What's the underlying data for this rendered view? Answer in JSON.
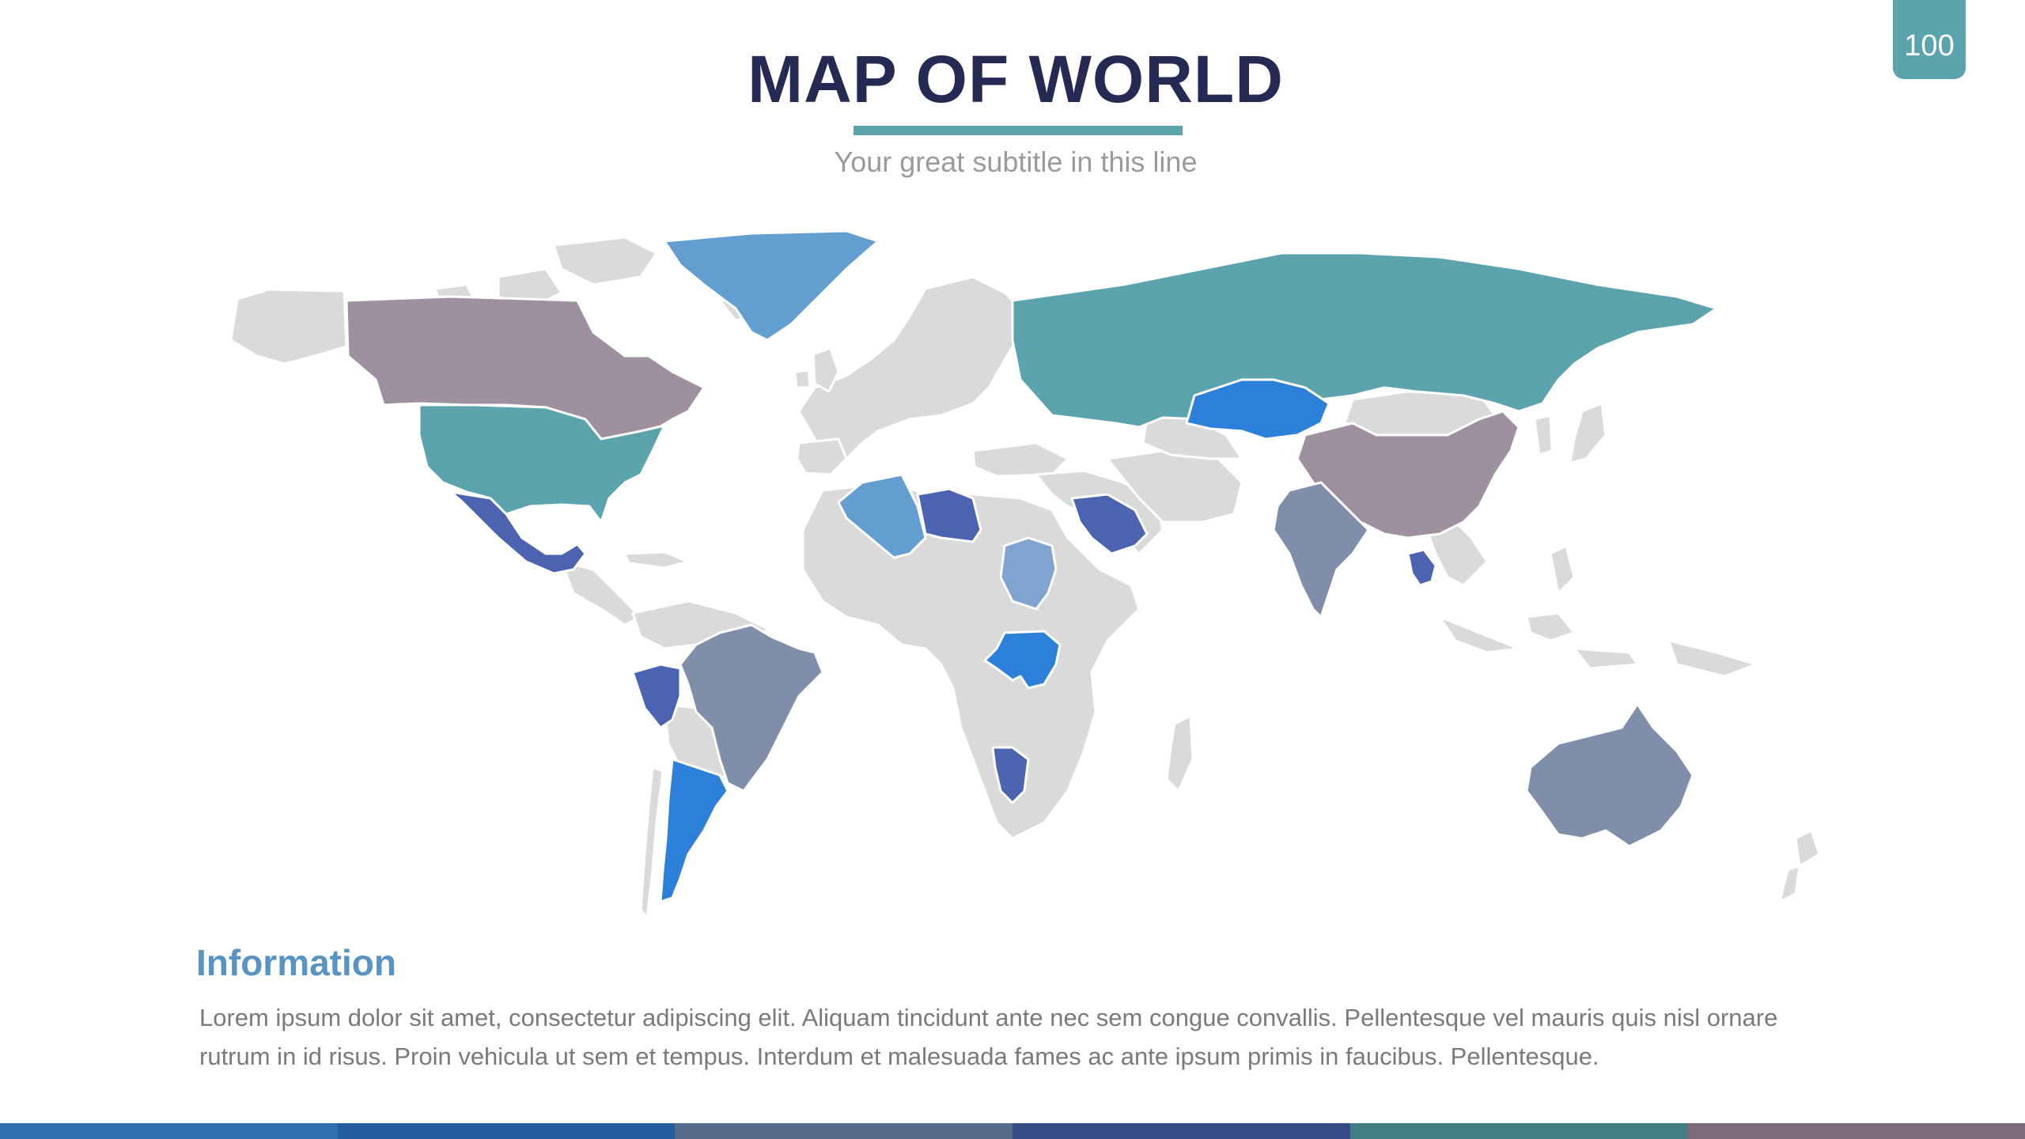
{
  "page_number": "100",
  "title": "MAP OF WORLD",
  "subtitle": "Your great subtitle in this line",
  "info": {
    "heading": "Information",
    "body": "Lorem ipsum dolor sit amet, consectetur adipiscing elit. Aliquam tincidunt ante nec sem congue convallis. Pellentesque vel mauris quis nisl ornare rutrum in id risus. Proin vehicula ut sem et tempus. Interdum et malesuada fames ac ante ipsum primis in faucibus. Pellentesque."
  },
  "colors": {
    "teal": "#5ba3ad",
    "mauve": "#9e909e",
    "slate": "#7f8ea9",
    "light_blue": "#639ed0",
    "bright_blue": "#2c80d9",
    "indigo": "#4b63b0",
    "land_default": "#dadada",
    "title": "#252a55"
  },
  "footer_colors": [
    "#2f6fb0",
    "#245ea0",
    "#566a89",
    "#364b85",
    "#3f7e82",
    "#7b6a78"
  ]
}
